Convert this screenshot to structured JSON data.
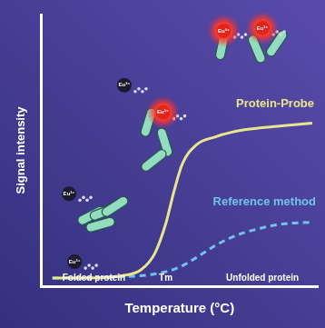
{
  "chart_data": {
    "type": "line",
    "x_label": "Temperature (°C)",
    "y_label": "Signal intensity",
    "xlim": [
      0,
      100
    ],
    "ylim": [
      0,
      100
    ],
    "tick_labels": false,
    "grid": false,
    "annotations": [
      "Folded protein",
      "Tm",
      "Unfolded protein",
      "Eu³⁺"
    ],
    "series": [
      {
        "name": "Protein-Probe",
        "color": "#e6e68c",
        "line_style": "solid",
        "x": [
          4,
          16,
          30,
          36,
          41,
          45,
          48,
          51,
          56,
          63,
          73,
          87,
          98
        ],
        "values": [
          3,
          3,
          4,
          6,
          12,
          23,
          35,
          45,
          52,
          55,
          57.5,
          59,
          60
        ]
      },
      {
        "name": "Reference method",
        "color": "#6fc3ec",
        "line_style": "dashed",
        "x": [
          4,
          30,
          41,
          50,
          56,
          63,
          70,
          78,
          88,
          98
        ],
        "values": [
          3,
          3.5,
          4.5,
          7,
          10.5,
          15,
          18.5,
          21,
          23,
          23.5
        ]
      }
    ]
  }
}
